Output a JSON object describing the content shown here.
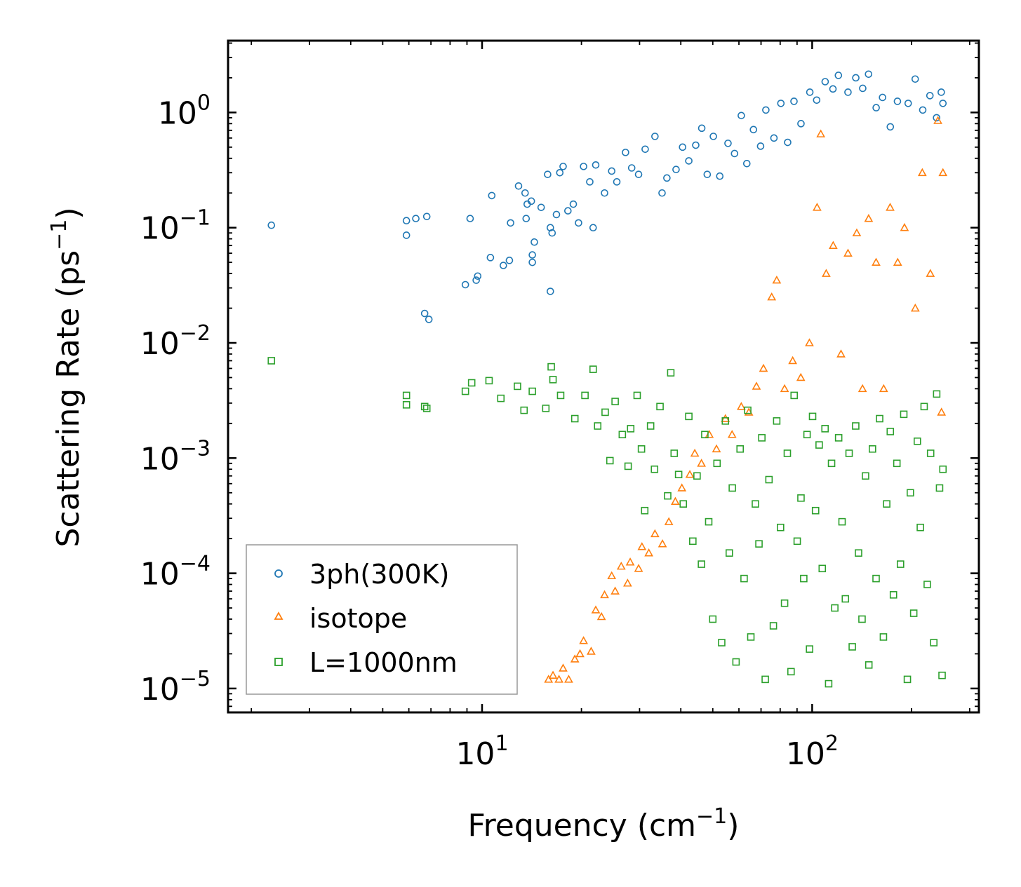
{
  "chart_data": {
    "type": "scatter",
    "xscale": "log",
    "yscale": "log",
    "xlabel": "Frequency (cm",
    "xlabel_sup": "−1",
    "xlabel_end": ")",
    "ylabel": "Scattering Rate (ps",
    "ylabel_sup": "−1",
    "ylabel_end": ")",
    "xlim": [
      1.7,
      320
    ],
    "ylim": [
      6.2e-06,
      4.2
    ],
    "x_ticks": [
      {
        "value": 10,
        "base": "10",
        "exp": "1"
      },
      {
        "value": 100,
        "base": "10",
        "exp": "2"
      }
    ],
    "y_ticks": [
      {
        "value": 1,
        "base": "10",
        "exp": "0"
      },
      {
        "value": 0.1,
        "base": "10",
        "exp": "−1"
      },
      {
        "value": 0.01,
        "base": "10",
        "exp": "−2"
      },
      {
        "value": 0.001,
        "base": "10",
        "exp": "−3"
      },
      {
        "value": 0.0001,
        "base": "10",
        "exp": "−4"
      },
      {
        "value": 1e-05,
        "base": "10",
        "exp": "−5"
      }
    ],
    "legend_position": "lower-left",
    "series": [
      {
        "name": "3ph(300K)",
        "marker": "circle",
        "color": "#1f77b4",
        "points": [
          [
            2.3,
            0.105
          ],
          [
            5.9,
            0.086
          ],
          [
            5.9,
            0.115
          ],
          [
            6.3,
            0.12
          ],
          [
            6.8,
            0.125
          ],
          [
            6.7,
            0.018
          ],
          [
            6.9,
            0.016
          ],
          [
            8.9,
            0.032
          ],
          [
            9.2,
            0.12
          ],
          [
            9.6,
            0.035
          ],
          [
            9.7,
            0.038
          ],
          [
            10.6,
            0.055
          ],
          [
            10.7,
            0.19
          ],
          [
            11.6,
            0.047
          ],
          [
            12.1,
            0.052
          ],
          [
            12.2,
            0.11
          ],
          [
            12.9,
            0.23
          ],
          [
            13.5,
            0.2
          ],
          [
            13.6,
            0.12
          ],
          [
            13.7,
            0.16
          ],
          [
            14.1,
            0.17
          ],
          [
            14.2,
            0.05
          ],
          [
            14.2,
            0.058
          ],
          [
            14.4,
            0.075
          ],
          [
            15.1,
            0.15
          ],
          [
            15.8,
            0.29
          ],
          [
            16.1,
            0.1
          ],
          [
            16.1,
            0.028
          ],
          [
            16.3,
            0.09
          ],
          [
            16.8,
            0.13
          ],
          [
            17.2,
            0.3
          ],
          [
            17.6,
            0.34
          ],
          [
            18.2,
            0.14
          ],
          [
            18.9,
            0.16
          ],
          [
            19.6,
            0.11
          ],
          [
            20.3,
            0.34
          ],
          [
            21.2,
            0.25
          ],
          [
            21.7,
            0.1
          ],
          [
            22.1,
            0.35
          ],
          [
            23.5,
            0.2
          ],
          [
            24.7,
            0.31
          ],
          [
            25.6,
            0.25
          ],
          [
            27.2,
            0.45
          ],
          [
            28.4,
            0.33
          ],
          [
            29.8,
            0.29
          ],
          [
            31.2,
            0.48
          ],
          [
            33.4,
            0.62
          ],
          [
            35.1,
            0.2
          ],
          [
            36.3,
            0.27
          ],
          [
            38.7,
            0.32
          ],
          [
            40.5,
            0.5
          ],
          [
            42.3,
            0.38
          ],
          [
            44.4,
            0.52
          ],
          [
            46.3,
            0.73
          ],
          [
            48.1,
            0.29
          ],
          [
            50.2,
            0.62
          ],
          [
            52.5,
            0.28
          ],
          [
            55.6,
            0.54
          ],
          [
            58.2,
            0.44
          ],
          [
            61.0,
            0.94
          ],
          [
            63.4,
            0.36
          ],
          [
            66.4,
            0.71
          ],
          [
            69.8,
            0.51
          ],
          [
            72.4,
            1.05
          ],
          [
            76.6,
            0.6
          ],
          [
            80.4,
            1.2
          ],
          [
            84.3,
            0.55
          ],
          [
            88.1,
            1.25
          ],
          [
            92.5,
            0.8
          ],
          [
            98.4,
            1.5
          ],
          [
            103.2,
            1.28
          ],
          [
            109.5,
            1.85
          ],
          [
            115.6,
            1.6
          ],
          [
            120.1,
            2.1
          ],
          [
            128.4,
            1.5
          ],
          [
            135.6,
            2.0
          ],
          [
            142.3,
            1.62
          ],
          [
            148.2,
            2.15
          ],
          [
            156.3,
            1.1
          ],
          [
            163.4,
            1.35
          ],
          [
            172.5,
            0.75
          ],
          [
            181.3,
            1.25
          ],
          [
            195.4,
            1.2
          ],
          [
            205.2,
            1.95
          ],
          [
            216.3,
            1.05
          ],
          [
            227.4,
            1.4
          ],
          [
            238.2,
            0.9
          ],
          [
            246.1,
            1.5
          ],
          [
            249.0,
            1.2
          ]
        ]
      },
      {
        "name": "isotope",
        "marker": "triangle",
        "color": "#ff7f0e",
        "points": [
          [
            15.9,
            1.2e-05
          ],
          [
            16.4,
            1.3e-05
          ],
          [
            17.1,
            1.2e-05
          ],
          [
            17.6,
            1.5e-05
          ],
          [
            18.3,
            1.2e-05
          ],
          [
            19.1,
            1.8e-05
          ],
          [
            19.8,
            2e-05
          ],
          [
            20.3,
            2.6e-05
          ],
          [
            21.4,
            2.1e-05
          ],
          [
            22.1,
            4.8e-05
          ],
          [
            23.0,
            4.2e-05
          ],
          [
            23.5,
            6.5e-05
          ],
          [
            24.7,
            9.5e-05
          ],
          [
            25.3,
            7e-05
          ],
          [
            26.4,
            0.000115
          ],
          [
            27.6,
            8.2e-05
          ],
          [
            28.1,
            0.000125
          ],
          [
            29.8,
            0.00011
          ],
          [
            30.5,
            0.00017
          ],
          [
            32.0,
            0.00015
          ],
          [
            33.4,
            0.00022
          ],
          [
            35.2,
            0.00018
          ],
          [
            36.8,
            0.00028
          ],
          [
            38.5,
            0.00042
          ],
          [
            40.3,
            0.00055
          ],
          [
            42.6,
            0.00072
          ],
          [
            44.1,
            0.0011
          ],
          [
            46.2,
            0.0009
          ],
          [
            48.8,
            0.0016
          ],
          [
            51.3,
            0.0012
          ],
          [
            54.6,
            0.0022
          ],
          [
            57.2,
            0.0016
          ],
          [
            61.0,
            0.0028
          ],
          [
            64.3,
            0.0025
          ],
          [
            67.8,
            0.0042
          ],
          [
            71.2,
            0.006
          ],
          [
            75.4,
            0.025
          ],
          [
            78.1,
            0.035
          ],
          [
            82.5,
            0.004
          ],
          [
            87.3,
            0.007
          ],
          [
            92.4,
            0.005
          ],
          [
            98.1,
            0.01
          ],
          [
            103.5,
            0.15
          ],
          [
            106.2,
            0.65
          ],
          [
            110.3,
            0.04
          ],
          [
            115.8,
            0.07
          ],
          [
            122.3,
            0.008
          ],
          [
            128.4,
            0.06
          ],
          [
            136.5,
            0.09
          ],
          [
            142.1,
            0.004
          ],
          [
            148.3,
            0.12
          ],
          [
            156.2,
            0.05
          ],
          [
            164.7,
            0.004
          ],
          [
            172.3,
            0.15
          ],
          [
            181.6,
            0.05
          ],
          [
            190.4,
            0.1
          ],
          [
            205.3,
            0.02
          ],
          [
            215.6,
            0.3
          ],
          [
            228.1,
            0.04
          ],
          [
            240.4,
            0.85
          ],
          [
            246.5,
            0.0025
          ],
          [
            249.0,
            0.3
          ]
        ]
      },
      {
        "name": "L=1000nm",
        "marker": "square",
        "color": "#2ca02c",
        "points": [
          [
            2.3,
            0.007
          ],
          [
            5.9,
            0.0035
          ],
          [
            5.9,
            0.0029
          ],
          [
            6.7,
            0.0028
          ],
          [
            6.8,
            0.0027
          ],
          [
            8.9,
            0.0038
          ],
          [
            9.3,
            0.0045
          ],
          [
            10.5,
            0.0047
          ],
          [
            11.4,
            0.0033
          ],
          [
            12.8,
            0.0042
          ],
          [
            13.4,
            0.0026
          ],
          [
            14.2,
            0.0038
          ],
          [
            15.6,
            0.0027
          ],
          [
            16.2,
            0.0062
          ],
          [
            16.4,
            0.0048
          ],
          [
            17.3,
            0.0035
          ],
          [
            19.1,
            0.0022
          ],
          [
            20.5,
            0.0035
          ],
          [
            21.7,
            0.0059
          ],
          [
            22.4,
            0.0019
          ],
          [
            23.6,
            0.0025
          ],
          [
            24.4,
            0.00095
          ],
          [
            25.3,
            0.0031
          ],
          [
            26.6,
            0.0016
          ],
          [
            27.7,
            0.00085
          ],
          [
            28.2,
            0.0018
          ],
          [
            29.5,
            0.0035
          ],
          [
            30.4,
            0.0012
          ],
          [
            31.1,
            0.00035
          ],
          [
            32.4,
            0.0019
          ],
          [
            33.3,
            0.0008
          ],
          [
            34.6,
            0.0028
          ],
          [
            36.5,
            0.00047
          ],
          [
            37.3,
            0.0055
          ],
          [
            38.2,
            0.0011
          ],
          [
            39.4,
            0.00072
          ],
          [
            40.7,
            0.0004
          ],
          [
            42.3,
            0.0023
          ],
          [
            43.5,
            0.00019
          ],
          [
            44.8,
            0.0007
          ],
          [
            46.2,
            0.00012
          ],
          [
            47.3,
            0.0016
          ],
          [
            48.6,
            0.00028
          ],
          [
            50.0,
            4e-05
          ],
          [
            51.5,
            0.0009
          ],
          [
            53.2,
            2.5e-05
          ],
          [
            54.6,
            0.0021
          ],
          [
            56.1,
            0.00015
          ],
          [
            57.3,
            0.00055
          ],
          [
            58.8,
            1.7e-05
          ],
          [
            60.5,
            0.0012
          ],
          [
            62.2,
            9e-05
          ],
          [
            63.8,
            0.0026
          ],
          [
            65.2,
            2.8e-05
          ],
          [
            67.3,
            0.0004
          ],
          [
            69.0,
            0.00018
          ],
          [
            70.4,
            0.0015
          ],
          [
            72.1,
            1.2e-05
          ],
          [
            74.0,
            0.00065
          ],
          [
            76.3,
            3.5e-05
          ],
          [
            78.1,
            0.0021
          ],
          [
            80.2,
            0.00025
          ],
          [
            82.5,
            5.5e-05
          ],
          [
            84.1,
            0.0011
          ],
          [
            86.3,
            1.4e-05
          ],
          [
            88.2,
            0.0035
          ],
          [
            90.1,
            0.00019
          ],
          [
            92.5,
            0.00045
          ],
          [
            94.3,
            9e-05
          ],
          [
            96.5,
            0.0016
          ],
          [
            98.2,
            2.2e-05
          ],
          [
            100.3,
            0.0023
          ],
          [
            102.4,
            0.00035
          ],
          [
            105.0,
            0.0013
          ],
          [
            107.3,
            0.00011
          ],
          [
            109.4,
            0.0018
          ],
          [
            112.2,
            1.1e-05
          ],
          [
            114.5,
            0.0009
          ],
          [
            117.1,
            5e-05
          ],
          [
            120.3,
            0.0015
          ],
          [
            123.2,
            0.00028
          ],
          [
            126.1,
            6e-05
          ],
          [
            129.4,
            0.0011
          ],
          [
            132.3,
            2.3e-05
          ],
          [
            135.5,
            0.0019
          ],
          [
            138.2,
            0.00015
          ],
          [
            141.6,
            4e-05
          ],
          [
            145.1,
            0.0007
          ],
          [
            148.5,
            1.6e-05
          ],
          [
            152.3,
            0.0012
          ],
          [
            156.2,
            9e-05
          ],
          [
            160.1,
            0.0022
          ],
          [
            164.4,
            2.8e-05
          ],
          [
            168.2,
            0.0004
          ],
          [
            172.5,
            0.0017
          ],
          [
            176.3,
            6.5e-05
          ],
          [
            180.6,
            0.0009
          ],
          [
            185.2,
            0.00012
          ],
          [
            189.5,
            0.0024
          ],
          [
            194.3,
            1.2e-05
          ],
          [
            198.4,
            0.0005
          ],
          [
            203.1,
            4.5e-05
          ],
          [
            208.3,
            0.0014
          ],
          [
            212.7,
            0.00025
          ],
          [
            218.4,
            0.0028
          ],
          [
            223.2,
            8e-05
          ],
          [
            228.5,
            0.0011
          ],
          [
            233.6,
            2.5e-05
          ],
          [
            238.4,
            0.0036
          ],
          [
            243.2,
            0.00055
          ],
          [
            247.5,
            1.3e-05
          ],
          [
            249.0,
            0.0008
          ]
        ]
      }
    ]
  }
}
